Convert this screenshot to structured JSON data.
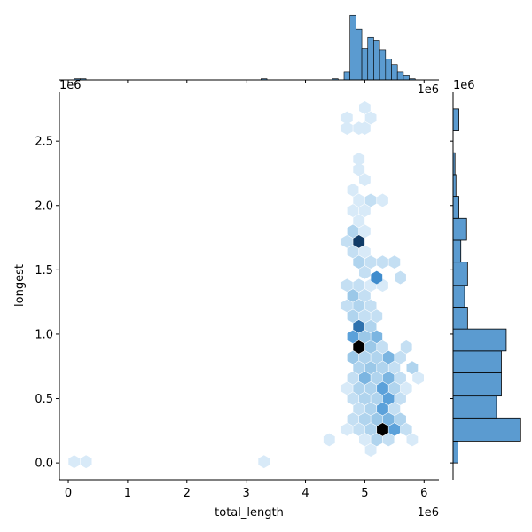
{
  "chart_data": {
    "type": "hexbin-joint",
    "xlabel": "total_length",
    "ylabel": "longest",
    "x_offset_label": "1e6",
    "y_offset_label": "1e6",
    "top_offset_label": "1e6",
    "right_offset_label": "1e6",
    "xlim": [
      -0.15,
      6.25
    ],
    "ylim": [
      -0.13,
      2.88
    ],
    "x_ticks": [
      0,
      1,
      2,
      3,
      4,
      5,
      6
    ],
    "x_tick_labels": [
      "0",
      "1",
      "2",
      "3",
      "4",
      "5",
      "6"
    ],
    "y_ticks": [
      0.0,
      0.5,
      1.0,
      1.5,
      2.0,
      2.5
    ],
    "y_tick_labels": [
      "0.0",
      "0.5",
      "1.0",
      "1.5",
      "2.0",
      "2.5"
    ],
    "grid": false,
    "colors": {
      "marginal_fill": "#5b9bd0",
      "marginal_edge": "#000000",
      "hex_max": "#000000",
      "hex_min": "#e3f0fb"
    },
    "hexbins": [
      {
        "x": 0.1,
        "y": 0.01,
        "count": 1
      },
      {
        "x": 0.3,
        "y": 0.01,
        "count": 1
      },
      {
        "x": 3.3,
        "y": 0.01,
        "count": 1
      },
      {
        "x": 4.4,
        "y": 0.18,
        "count": 1
      },
      {
        "x": 5.1,
        "y": 0.1,
        "count": 1
      },
      {
        "x": 4.9,
        "y": 0.26,
        "count": 2
      },
      {
        "x": 5.1,
        "y": 0.26,
        "count": 3
      },
      {
        "x": 5.3,
        "y": 0.26,
        "count": 12
      },
      {
        "x": 5.5,
        "y": 0.26,
        "count": 6
      },
      {
        "x": 5.7,
        "y": 0.26,
        "count": 2
      },
      {
        "x": 4.7,
        "y": 0.26,
        "count": 1
      },
      {
        "x": 5.8,
        "y": 0.18,
        "count": 1
      },
      {
        "x": 5.0,
        "y": 0.18,
        "count": 1
      },
      {
        "x": 5.2,
        "y": 0.18,
        "count": 3
      },
      {
        "x": 5.4,
        "y": 0.18,
        "count": 2
      },
      {
        "x": 4.8,
        "y": 0.34,
        "count": 2
      },
      {
        "x": 5.0,
        "y": 0.34,
        "count": 3
      },
      {
        "x": 5.2,
        "y": 0.34,
        "count": 4
      },
      {
        "x": 5.4,
        "y": 0.34,
        "count": 5
      },
      {
        "x": 5.6,
        "y": 0.34,
        "count": 3
      },
      {
        "x": 4.9,
        "y": 0.42,
        "count": 2
      },
      {
        "x": 5.1,
        "y": 0.42,
        "count": 3
      },
      {
        "x": 5.3,
        "y": 0.42,
        "count": 6
      },
      {
        "x": 5.5,
        "y": 0.42,
        "count": 2
      },
      {
        "x": 4.8,
        "y": 0.5,
        "count": 2
      },
      {
        "x": 5.0,
        "y": 0.5,
        "count": 3
      },
      {
        "x": 5.2,
        "y": 0.5,
        "count": 3
      },
      {
        "x": 5.4,
        "y": 0.5,
        "count": 6
      },
      {
        "x": 5.6,
        "y": 0.5,
        "count": 2
      },
      {
        "x": 4.7,
        "y": 0.58,
        "count": 1
      },
      {
        "x": 4.9,
        "y": 0.58,
        "count": 3
      },
      {
        "x": 5.1,
        "y": 0.58,
        "count": 3
      },
      {
        "x": 5.3,
        "y": 0.58,
        "count": 6
      },
      {
        "x": 5.5,
        "y": 0.58,
        "count": 3
      },
      {
        "x": 5.7,
        "y": 0.58,
        "count": 1
      },
      {
        "x": 4.8,
        "y": 0.66,
        "count": 2
      },
      {
        "x": 5.0,
        "y": 0.66,
        "count": 5
      },
      {
        "x": 5.2,
        "y": 0.66,
        "count": 3
      },
      {
        "x": 5.4,
        "y": 0.66,
        "count": 5
      },
      {
        "x": 5.6,
        "y": 0.66,
        "count": 2
      },
      {
        "x": 5.9,
        "y": 0.66,
        "count": 1
      },
      {
        "x": 4.9,
        "y": 0.74,
        "count": 3
      },
      {
        "x": 5.1,
        "y": 0.74,
        "count": 4
      },
      {
        "x": 5.3,
        "y": 0.74,
        "count": 3
      },
      {
        "x": 5.5,
        "y": 0.74,
        "count": 2
      },
      {
        "x": 5.8,
        "y": 0.74,
        "count": 3
      },
      {
        "x": 4.8,
        "y": 0.82,
        "count": 4
      },
      {
        "x": 5.0,
        "y": 0.82,
        "count": 3
      },
      {
        "x": 5.2,
        "y": 0.82,
        "count": 3
      },
      {
        "x": 5.4,
        "y": 0.82,
        "count": 5
      },
      {
        "x": 5.6,
        "y": 0.82,
        "count": 2
      },
      {
        "x": 4.9,
        "y": 0.9,
        "count": 12
      },
      {
        "x": 5.1,
        "y": 0.9,
        "count": 4
      },
      {
        "x": 5.3,
        "y": 0.9,
        "count": 2
      },
      {
        "x": 5.7,
        "y": 0.9,
        "count": 2
      },
      {
        "x": 4.8,
        "y": 0.98,
        "count": 6
      },
      {
        "x": 5.0,
        "y": 0.98,
        "count": 4
      },
      {
        "x": 5.2,
        "y": 0.98,
        "count": 5
      },
      {
        "x": 4.9,
        "y": 1.06,
        "count": 8
      },
      {
        "x": 5.1,
        "y": 1.06,
        "count": 3
      },
      {
        "x": 4.8,
        "y": 1.14,
        "count": 3
      },
      {
        "x": 5.0,
        "y": 1.14,
        "count": 2
      },
      {
        "x": 5.2,
        "y": 1.14,
        "count": 2
      },
      {
        "x": 4.7,
        "y": 1.22,
        "count": 2
      },
      {
        "x": 4.9,
        "y": 1.22,
        "count": 3
      },
      {
        "x": 5.1,
        "y": 1.22,
        "count": 2
      },
      {
        "x": 4.8,
        "y": 1.3,
        "count": 4
      },
      {
        "x": 5.0,
        "y": 1.3,
        "count": 2
      },
      {
        "x": 4.9,
        "y": 1.38,
        "count": 2
      },
      {
        "x": 5.3,
        "y": 1.38,
        "count": 1
      },
      {
        "x": 4.7,
        "y": 1.38,
        "count": 2
      },
      {
        "x": 5.1,
        "y": 1.38,
        "count": 1
      },
      {
        "x": 5.2,
        "y": 1.44,
        "count": 7
      },
      {
        "x": 5.6,
        "y": 1.44,
        "count": 2
      },
      {
        "x": 5.0,
        "y": 1.48,
        "count": 2
      },
      {
        "x": 4.9,
        "y": 1.56,
        "count": 3
      },
      {
        "x": 5.1,
        "y": 1.56,
        "count": 2
      },
      {
        "x": 5.3,
        "y": 1.56,
        "count": 2
      },
      {
        "x": 5.5,
        "y": 1.56,
        "count": 2
      },
      {
        "x": 4.8,
        "y": 1.64,
        "count": 2
      },
      {
        "x": 5.0,
        "y": 1.64,
        "count": 1
      },
      {
        "x": 4.7,
        "y": 1.72,
        "count": 2
      },
      {
        "x": 4.9,
        "y": 1.72,
        "count": 10
      },
      {
        "x": 4.8,
        "y": 1.8,
        "count": 3
      },
      {
        "x": 5.0,
        "y": 1.8,
        "count": 1
      },
      {
        "x": 4.9,
        "y": 1.88,
        "count": 1
      },
      {
        "x": 4.8,
        "y": 1.96,
        "count": 1
      },
      {
        "x": 5.0,
        "y": 1.96,
        "count": 1
      },
      {
        "x": 5.1,
        "y": 2.04,
        "count": 2
      },
      {
        "x": 5.3,
        "y": 2.04,
        "count": 1
      },
      {
        "x": 4.9,
        "y": 2.04,
        "count": 1
      },
      {
        "x": 4.8,
        "y": 2.12,
        "count": 1
      },
      {
        "x": 5.0,
        "y": 2.2,
        "count": 1
      },
      {
        "x": 4.9,
        "y": 2.28,
        "count": 1
      },
      {
        "x": 4.9,
        "y": 2.36,
        "count": 1
      },
      {
        "x": 4.7,
        "y": 2.6,
        "count": 1
      },
      {
        "x": 4.9,
        "y": 2.6,
        "count": 1
      },
      {
        "x": 5.0,
        "y": 2.6,
        "count": 1
      },
      {
        "x": 4.7,
        "y": 2.68,
        "count": 1
      },
      {
        "x": 5.1,
        "y": 2.68,
        "count": 1
      },
      {
        "x": 5.0,
        "y": 2.76,
        "count": 1
      }
    ],
    "x_marginal": {
      "bin_edges": [
        0.0,
        0.1,
        0.2,
        0.3,
        0.4,
        3.25,
        3.35,
        4.45,
        4.55,
        4.65,
        4.75,
        4.85,
        4.95,
        5.05,
        5.15,
        5.25,
        5.35,
        5.45,
        5.55,
        5.65,
        5.75,
        5.85,
        5.95
      ],
      "bins": [
        {
          "x0": 0.1,
          "x1": 0.2,
          "count": 0.3
        },
        {
          "x0": 0.2,
          "x1": 0.3,
          "count": 0.3
        },
        {
          "x0": 3.25,
          "x1": 3.35,
          "count": 0.3
        },
        {
          "x0": 4.45,
          "x1": 4.55,
          "count": 0.3
        },
        {
          "x0": 4.65,
          "x1": 4.75,
          "count": 2
        },
        {
          "x0": 4.75,
          "x1": 4.85,
          "count": 16
        },
        {
          "x0": 4.85,
          "x1": 4.95,
          "count": 12.5
        },
        {
          "x0": 4.95,
          "x1": 5.05,
          "count": 7.8
        },
        {
          "x0": 5.05,
          "x1": 5.15,
          "count": 10.5
        },
        {
          "x0": 5.15,
          "x1": 5.25,
          "count": 9.8
        },
        {
          "x0": 5.25,
          "x1": 5.35,
          "count": 7.5
        },
        {
          "x0": 5.35,
          "x1": 5.45,
          "count": 5.2
        },
        {
          "x0": 5.45,
          "x1": 5.55,
          "count": 3.8
        },
        {
          "x0": 5.55,
          "x1": 5.65,
          "count": 2
        },
        {
          "x0": 5.65,
          "x1": 5.75,
          "count": 1
        },
        {
          "x0": 5.75,
          "x1": 5.85,
          "count": 0.3
        }
      ],
      "ylim": [
        0,
        16.5
      ]
    },
    "y_marginal": {
      "bins": [
        {
          "y0": 0.0,
          "y1": 0.17,
          "count": 1
        },
        {
          "y0": 0.17,
          "y1": 0.35,
          "count": 14
        },
        {
          "y0": 0.35,
          "y1": 0.52,
          "count": 9
        },
        {
          "y0": 0.52,
          "y1": 0.7,
          "count": 10
        },
        {
          "y0": 0.7,
          "y1": 0.87,
          "count": 10
        },
        {
          "y0": 0.87,
          "y1": 1.04,
          "count": 11
        },
        {
          "y0": 1.04,
          "y1": 1.21,
          "count": 3
        },
        {
          "y0": 1.21,
          "y1": 1.38,
          "count": 2.4
        },
        {
          "y0": 1.38,
          "y1": 1.56,
          "count": 3
        },
        {
          "y0": 1.56,
          "y1": 1.73,
          "count": 1.6
        },
        {
          "y0": 1.73,
          "y1": 1.9,
          "count": 2.8
        },
        {
          "y0": 1.9,
          "y1": 2.07,
          "count": 1.2
        },
        {
          "y0": 2.07,
          "y1": 2.24,
          "count": 0.6
        },
        {
          "y0": 2.24,
          "y1": 2.41,
          "count": 0.4
        },
        {
          "y0": 2.58,
          "y1": 2.75,
          "count": 1.2
        }
      ],
      "xlim": [
        0,
        14.5
      ]
    }
  }
}
